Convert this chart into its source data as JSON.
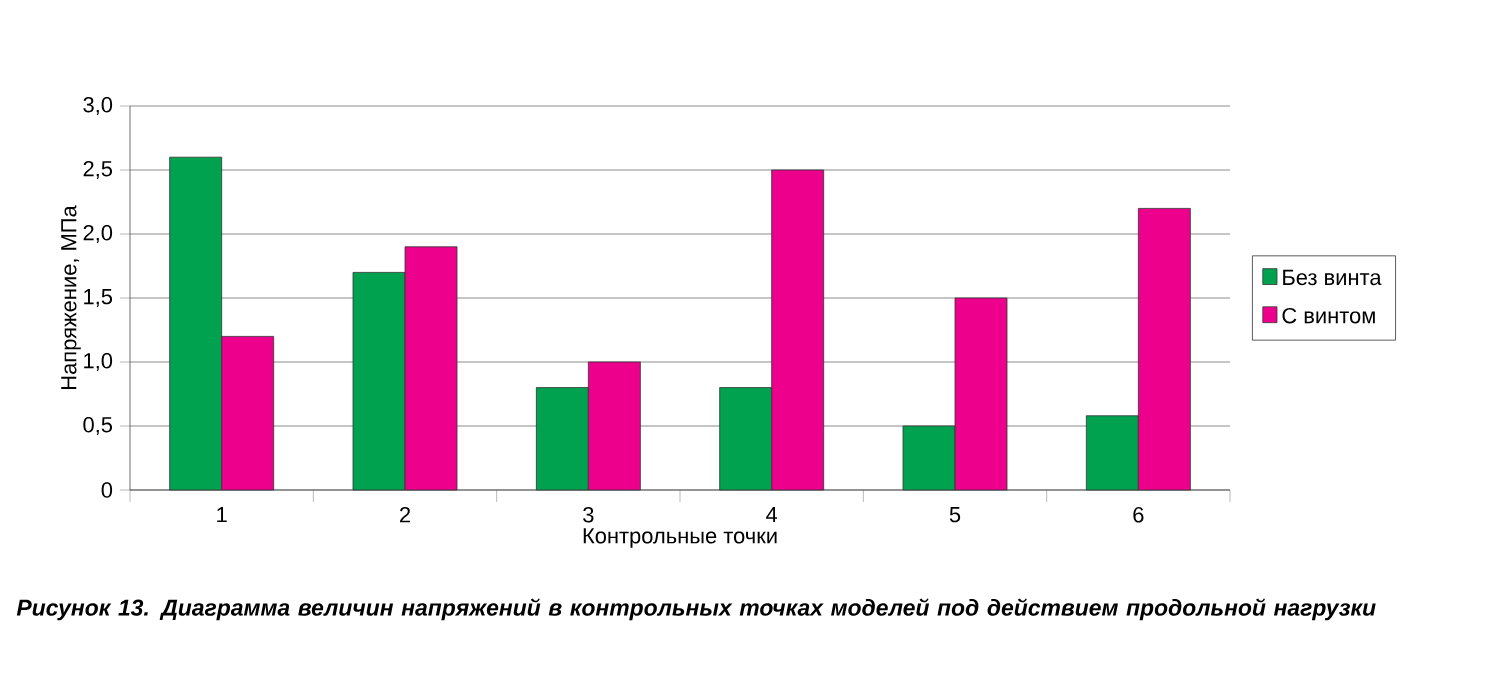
{
  "chart_data": {
    "type": "bar",
    "xlabel": "Контрольные точки",
    "ylabel": "Напряжение, МПа",
    "categories": [
      "1",
      "2",
      "3",
      "4",
      "5",
      "6"
    ],
    "series": [
      {
        "name": "Без винта",
        "color": "#00a24f",
        "values": [
          2.6,
          1.7,
          0.8,
          0.8,
          0.5,
          0.58
        ]
      },
      {
        "name": "С винтом",
        "color": "#ec008c",
        "values": [
          1.2,
          1.9,
          1.0,
          2.5,
          1.5,
          2.2
        ]
      }
    ],
    "ylim": [
      0,
      3
    ],
    "yticks": [
      0,
      {
        "value": 0.5,
        "label": "0,5"
      },
      {
        "value": 1,
        "label": "1,0"
      },
      {
        "value": 1.5,
        "label": "1,5"
      },
      {
        "value": 2,
        "label": "2,0"
      },
      {
        "value": 2.5,
        "label": "2,5"
      },
      {
        "value": 3,
        "label": "3,0"
      }
    ],
    "grid": "y",
    "legend": "right",
    "annotations": [
      "Рисунок 13. Диаграмма величин напряжений в контрольных точках моделей под действием продольной нагрузки"
    ]
  }
}
